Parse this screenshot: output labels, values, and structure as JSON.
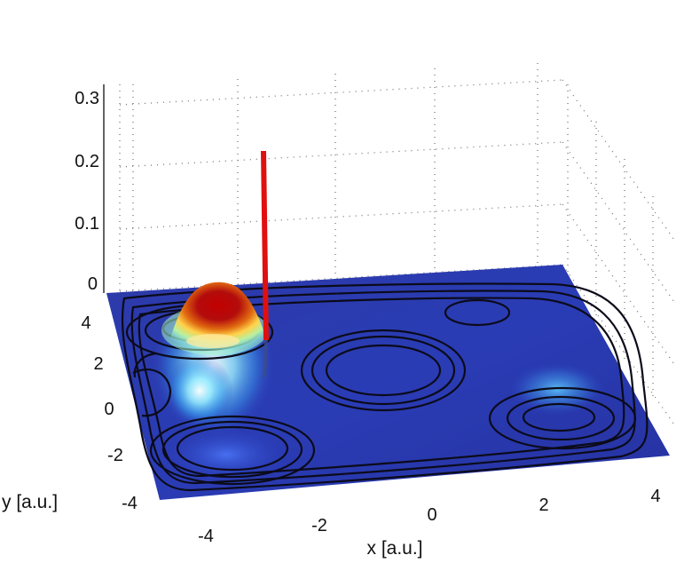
{
  "chart_data": {
    "type": "surface3d",
    "title": "",
    "xlabel": "x [a.u.]",
    "ylabel": "y [a.u.]",
    "zlabel": "",
    "xlim": [
      -5,
      5
    ],
    "ylim": [
      -5,
      5
    ],
    "zlim": [
      0,
      0.3
    ],
    "x_ticks": [
      "-4",
      "-2",
      "0",
      "2",
      "4"
    ],
    "y_ticks": [
      "-4",
      "-2",
      "0",
      "2",
      "4"
    ],
    "z_ticks": [
      "0",
      "0.1",
      "0.2",
      "0.3"
    ],
    "grid": true,
    "colormap": "jet",
    "series": [
      {
        "kind": "surface",
        "peaks": [
          {
            "x": -3.6,
            "y": 3.2,
            "z": 0.055
          },
          {
            "x": -3.4,
            "y": 1.8,
            "z": 0.02
          },
          {
            "x": -3.2,
            "y": -3.2,
            "z": 0.008
          },
          {
            "x": 3.3,
            "y": 0.4,
            "z": 0.006
          }
        ]
      },
      {
        "kind": "stem",
        "x": -2.6,
        "y": 2.4,
        "z": [
          0,
          0.21
        ],
        "color": "#e01010"
      }
    ],
    "colors": {
      "low": "#24309e",
      "high": "#b80000",
      "stem": "#e01010"
    }
  }
}
